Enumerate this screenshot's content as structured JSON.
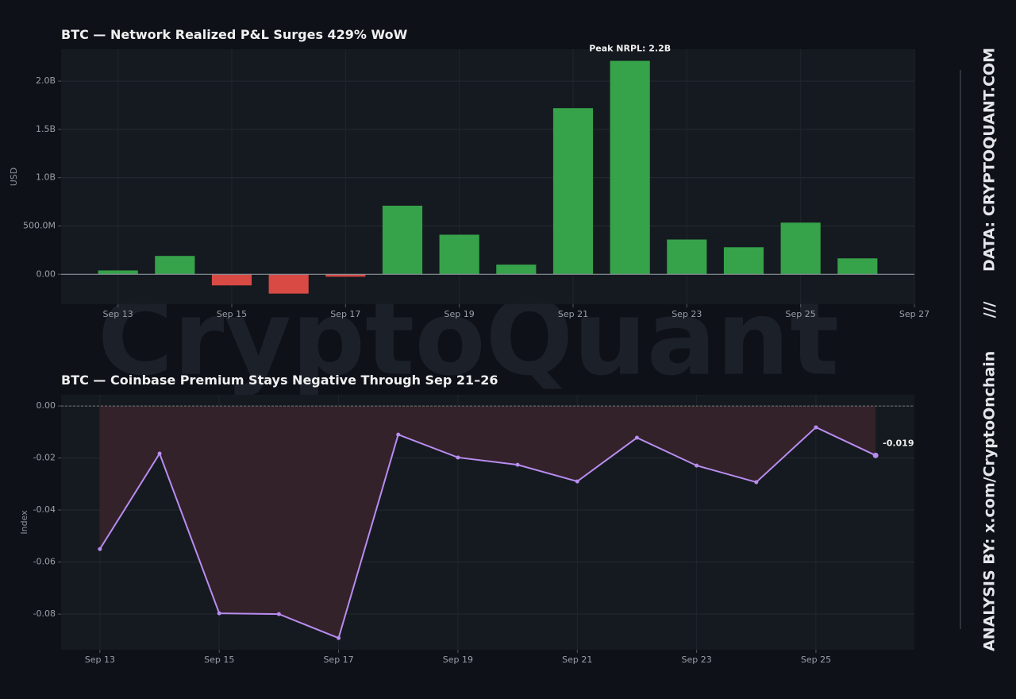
{
  "chart_data": [
    {
      "type": "bar",
      "title": "BTC — Network Realized P&L Surges 429% WoW",
      "y_label": "USD",
      "x": [
        "Sep 13",
        "Sep 14",
        "Sep 15",
        "Sep 16",
        "Sep 17",
        "Sep 18",
        "Sep 19",
        "Sep 20",
        "Sep 21",
        "Sep 22",
        "Sep 23",
        "Sep 24",
        "Sep 25",
        "Sep 26"
      ],
      "values": [
        40000000,
        190000000,
        -115000000,
        -200000000,
        -25000000,
        710000000,
        410000000,
        100000000,
        1720000000,
        2210000000,
        360000000,
        280000000,
        535000000,
        165000000
      ],
      "positive_color": "#36a24a",
      "negative_color": "#d94a45",
      "annotation": "Peak NRPL: 2.2B",
      "xlim": [
        "Sep 12",
        "Sep 27"
      ],
      "xticks": [
        "Sep 13",
        "Sep 15",
        "Sep 17",
        "Sep 19",
        "Sep 21",
        "Sep 23",
        "Sep 25",
        "Sep 27"
      ],
      "ylim": [
        -310000000,
        2330000000
      ],
      "yticks": [
        {
          "value": 0,
          "label": "0.00"
        },
        {
          "value": 500000000,
          "label": "500.0M"
        },
        {
          "value": 1000000000,
          "label": "1.0B"
        },
        {
          "value": 1500000000,
          "label": "1.5B"
        },
        {
          "value": 2000000000,
          "label": "2.0B"
        }
      ],
      "grid": true
    },
    {
      "type": "line",
      "title": "BTC — Coinbase Premium Stays Negative Through Sep 21–26",
      "y_label": "Index",
      "x": [
        "Sep 13",
        "Sep 14",
        "Sep 15",
        "Sep 16",
        "Sep 17",
        "Sep 18",
        "Sep 19",
        "Sep 20",
        "Sep 21",
        "Sep 22",
        "Sep 23",
        "Sep 24",
        "Sep 25",
        "Sep 26"
      ],
      "values": [
        -0.055,
        -0.0183,
        -0.0797,
        -0.08,
        -0.0892,
        -0.011,
        -0.0198,
        -0.0226,
        -0.029,
        -0.0122,
        -0.0229,
        -0.0293,
        -0.0082,
        -0.019
      ],
      "color": "#b98cf0",
      "fill_color": "#33222a",
      "annotation": "-0.019",
      "xticks": [
        "Sep 13",
        "Sep 15",
        "Sep 17",
        "Sep 19",
        "Sep 21",
        "Sep 23",
        "Sep 25"
      ],
      "ylim": [
        -0.0937,
        0.0043
      ],
      "yticks": [
        {
          "value": 0,
          "label": "0.00"
        },
        -0.02,
        -0.04,
        -0.06,
        -0.08
      ],
      "grid": true
    }
  ],
  "watermark": "CryptoQuant",
  "credits": {
    "analysis": "ANALYSIS BY: x.com/CryptoOnchain",
    "separator": "///",
    "data": "DATA: CRYPTOQUANT.COM"
  }
}
